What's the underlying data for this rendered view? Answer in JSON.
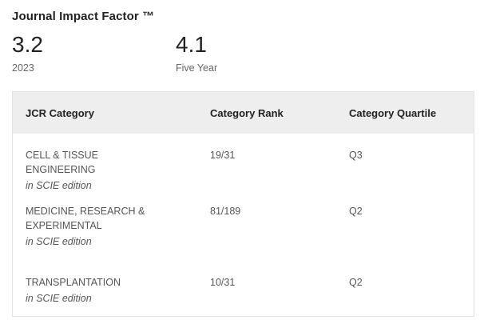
{
  "title": "Journal Impact Factor ™",
  "metrics": [
    {
      "value": "3.2",
      "label": "2023"
    },
    {
      "value": "4.1",
      "label": "Five Year"
    }
  ],
  "table": {
    "headers": [
      "JCR Category",
      "Category Rank",
      "Category Quartile"
    ],
    "rows": [
      {
        "category": "CELL & TISSUE ENGINEERING",
        "edition": "in SCIE edition",
        "rank": "19/31",
        "quartile": "Q3"
      },
      {
        "category": "MEDICINE, RESEARCH & EXPERIMENTAL",
        "edition": "in SCIE edition",
        "rank": "81/189",
        "quartile": "Q2"
      },
      {
        "category": "TRANSPLANTATION",
        "edition": "in SCIE edition",
        "rank": "10/31",
        "quartile": "Q2"
      }
    ]
  }
}
